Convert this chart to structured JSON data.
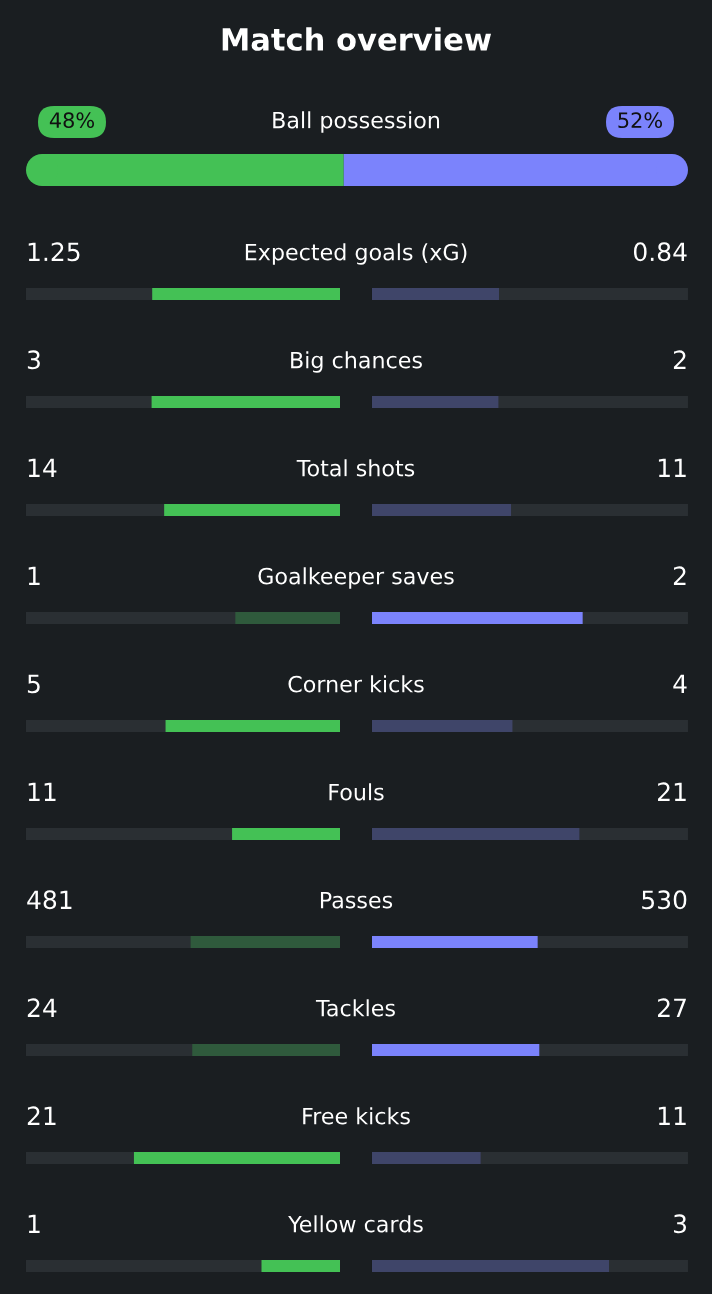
{
  "chart_data": {
    "type": "other",
    "title": "Match overview",
    "categories": [
      "Ball possession",
      "Expected goals (xG)",
      "Big chances",
      "Total shots",
      "Goalkeeper saves",
      "Corner kicks",
      "Fouls",
      "Passes",
      "Tackles",
      "Free kicks",
      "Yellow cards"
    ],
    "series": [
      {
        "colors": [
          "#44c155",
          "#44c155",
          "#44c155",
          "#44c155",
          "#2f5a3c",
          "#44c155",
          "#44c155",
          "#2f5a3c",
          "#2f5a3c",
          "#44c155",
          "#44c155"
        ],
        "values": [
          48,
          1.25,
          3,
          14,
          1,
          5,
          11,
          481,
          24,
          21,
          1
        ],
        "value_labels": [
          "48%",
          "1.25",
          "3",
          "14",
          "1",
          "5",
          "11",
          "481",
          "24",
          "21",
          "1"
        ]
      },
      {
        "colors": [
          "#7b83fc",
          "#3f4569",
          "#3f4569",
          "#3f4569",
          "#7b83fc",
          "#3f4569",
          "#3f4569",
          "#7b83fc",
          "#7b83fc",
          "#3f4569",
          "#3f4569"
        ],
        "values": [
          52,
          0.84,
          2,
          11,
          2,
          4,
          21,
          530,
          27,
          11,
          3
        ],
        "value_labels": [
          "52%",
          "0.84",
          "2",
          "11",
          "2",
          "4",
          "21",
          "530",
          "27",
          "11",
          "3"
        ]
      }
    ]
  }
}
